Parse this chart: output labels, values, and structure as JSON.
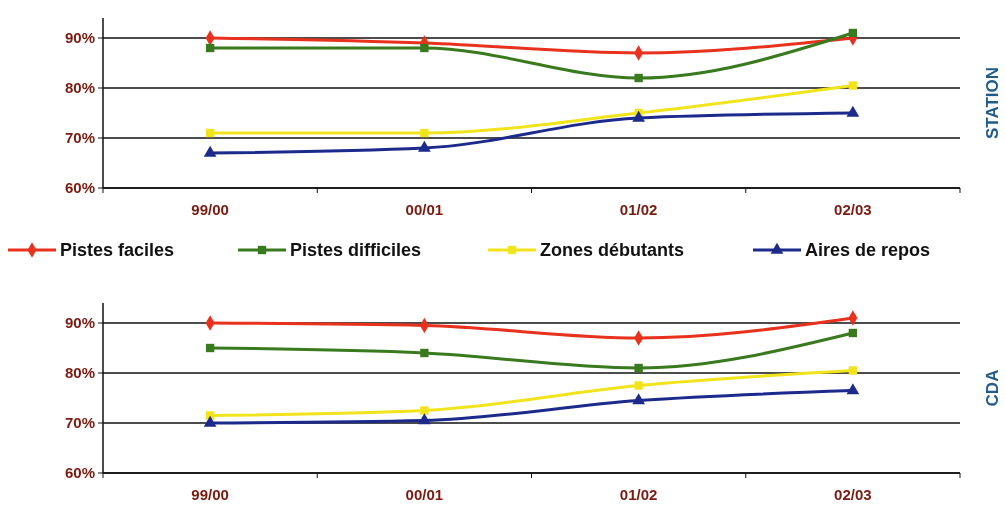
{
  "chart_data": [
    {
      "type": "line",
      "categories": [
        "99/00",
        "00/01",
        "01/02",
        "02/03"
      ],
      "y2label": "STATION",
      "ylim": [
        60,
        94
      ],
      "yticks": [
        {
          "value": 60,
          "label": "60%"
        },
        {
          "value": 70,
          "label": "70%"
        },
        {
          "value": 80,
          "label": "80%"
        },
        {
          "value": 90,
          "label": "90%"
        }
      ],
      "grid": "y",
      "legend": "bottom",
      "series": [
        {
          "name": "Pistes faciles",
          "color": "#e8321e",
          "marker": "diamond",
          "values": [
            90,
            89,
            87,
            90
          ]
        },
        {
          "name": "Pistes difficiles",
          "color": "#3a7a1e",
          "marker": "square",
          "values": [
            88,
            88,
            82,
            91
          ]
        },
        {
          "name": "Zones débutants",
          "color": "#f2e41c",
          "marker": "square",
          "values": [
            71,
            71,
            75,
            80.5
          ]
        },
        {
          "name": "Aires de repos",
          "color": "#1c2a8c",
          "marker": "triangle",
          "values": [
            67,
            68,
            74,
            75
          ]
        }
      ]
    },
    {
      "type": "line",
      "categories": [
        "99/00",
        "00/01",
        "01/02",
        "02/03"
      ],
      "y2label": "CDA",
      "ylim": [
        60,
        94
      ],
      "yticks": [
        {
          "value": 60,
          "label": "60%"
        },
        {
          "value": 70,
          "label": "70%"
        },
        {
          "value": 80,
          "label": "80%"
        },
        {
          "value": 90,
          "label": "90%"
        }
      ],
      "grid": "y",
      "series": [
        {
          "color": "#e8321e",
          "marker": "diamond",
          "values": [
            90,
            89.5,
            87,
            91
          ]
        },
        {
          "color": "#3a7a1e",
          "marker": "square",
          "values": [
            85,
            84,
            81,
            88
          ]
        },
        {
          "color": "#f2e41c",
          "marker": "square",
          "values": [
            71.5,
            72.5,
            77.5,
            80.5
          ]
        },
        {
          "color": "#1c2a8c",
          "marker": "triangle",
          "values": [
            70,
            70.5,
            74.5,
            76.5
          ]
        }
      ]
    }
  ]
}
